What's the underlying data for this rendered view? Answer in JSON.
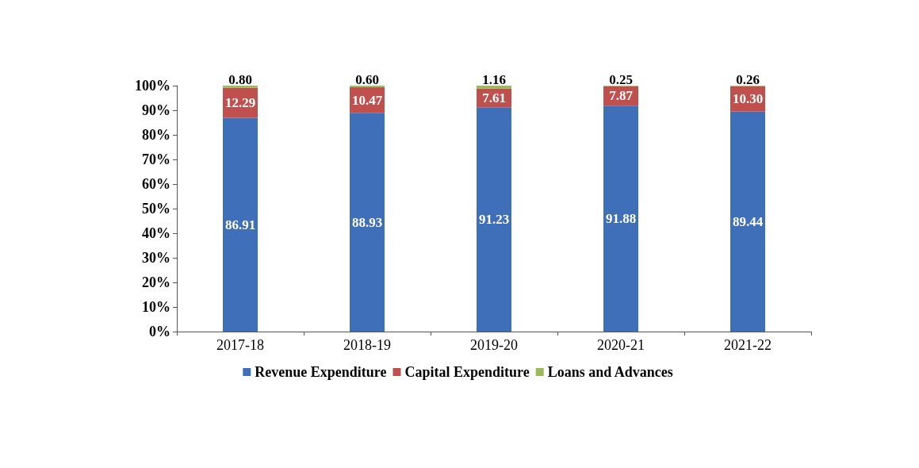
{
  "chart_data": {
    "type": "bar",
    "stacked": true,
    "categories": [
      "2017-18",
      "2018-19",
      "2019-20",
      "2020-21",
      "2021-22"
    ],
    "series": [
      {
        "name": "Revenue Expenditure",
        "color": "#3f6fb8",
        "values": [
          86.91,
          88.93,
          91.23,
          91.88,
          89.44
        ],
        "value_labels": [
          "86.91",
          "88.93",
          "91.23",
          "91.88",
          "89.44"
        ]
      },
      {
        "name": "Capital Expenditure",
        "color": "#c0504d",
        "values": [
          12.29,
          10.47,
          7.61,
          7.87,
          10.3
        ],
        "value_labels": [
          "12.29",
          "10.47",
          "7.61",
          "7.87",
          "10.30"
        ]
      },
      {
        "name": "Loans and Advances",
        "color": "#9bbb59",
        "values": [
          0.8,
          0.6,
          1.16,
          0.25,
          0.26
        ],
        "value_labels": [
          "0.80",
          "0.60",
          "1.16",
          "0.25",
          "0.26"
        ]
      }
    ],
    "ylim": [
      0,
      100
    ],
    "yticks": [
      {
        "value": 0,
        "label": "0%"
      },
      {
        "value": 10,
        "label": "10%"
      },
      {
        "value": 20,
        "label": "20%"
      },
      {
        "value": 30,
        "label": "30%"
      },
      {
        "value": 40,
        "label": "40%"
      },
      {
        "value": 50,
        "label": "50%"
      },
      {
        "value": 60,
        "label": "60%"
      },
      {
        "value": 70,
        "label": "70%"
      },
      {
        "value": 80,
        "label": "80%"
      },
      {
        "value": 90,
        "label": "90%"
      },
      {
        "value": 100,
        "label": "100%"
      }
    ],
    "grid": false,
    "legend": "bottom"
  }
}
